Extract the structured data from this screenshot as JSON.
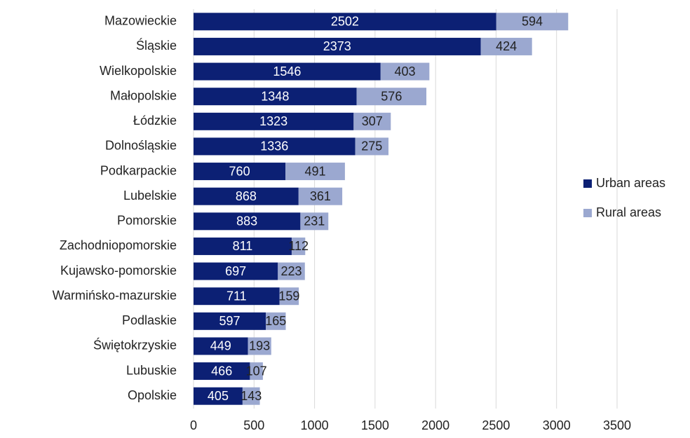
{
  "chart_data": {
    "type": "stacked-barh",
    "categories": [
      "Mazowieckie",
      "Śląskie",
      "Wielkopolskie",
      "Małopolskie",
      "Łódzkie",
      "Dolnośląskie",
      "Podkarpackie",
      "Lubelskie",
      "Pomorskie",
      "Zachodniopomorskie",
      "Kujawsko-pomorskie",
      "Warmińsko-mazurskie",
      "Podlaskie",
      "Świętokrzyskie",
      "Lubuskie",
      "Opolskie"
    ],
    "series": [
      {
        "name": "Urban areas",
        "color": "#0c2074",
        "values": [
          2502,
          2373,
          1546,
          1348,
          1323,
          1336,
          760,
          868,
          883,
          811,
          697,
          711,
          597,
          449,
          466,
          405
        ]
      },
      {
        "name": "Rural areas",
        "color": "#9ba8d0",
        "values": [
          594,
          424,
          403,
          576,
          307,
          275,
          491,
          361,
          231,
          112,
          223,
          159,
          165,
          193,
          107,
          143
        ]
      }
    ],
    "xlim": [
      0,
      3500
    ],
    "xticks": [
      0,
      500,
      1000,
      1500,
      2000,
      2500,
      3000,
      3500
    ],
    "grid": true,
    "legend": "right"
  }
}
